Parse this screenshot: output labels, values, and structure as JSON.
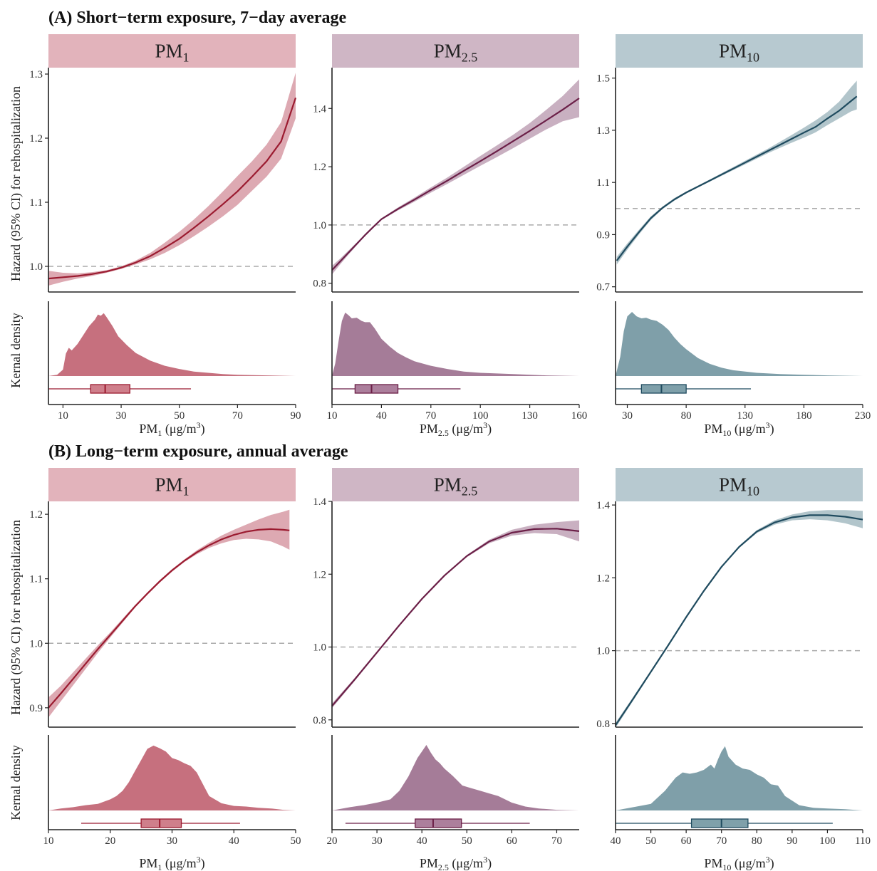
{
  "sections": [
    {
      "title": "(A) Short−term exposure, 7−day average"
    },
    {
      "title": "(B) Long−term exposure, annual average"
    }
  ],
  "y_label_top": "Hazard (95% CI) for rehospitalization",
  "y_label_bottom": "Kernal density",
  "pollutants": [
    {
      "key": "PM1",
      "base": "PM",
      "sub": "1",
      "color": "#9b1b30",
      "fill": "#c6707e",
      "strip": "#e2b3bb",
      "box_fill": "#cf7f8b"
    },
    {
      "key": "PM2.5",
      "base": "PM",
      "sub": "2.5",
      "color": "#6b1f47",
      "fill": "#a57c98",
      "strip": "#cfb6c5",
      "box_fill": "#ac7f9c"
    },
    {
      "key": "PM10",
      "base": "PM",
      "sub": "10",
      "color": "#1f4b5f",
      "fill": "#7f9fa9",
      "strip": "#b7c9d0",
      "box_fill": "#7fa0aa"
    }
  ],
  "unit_text": " (μg/m",
  "unit_sup": "3",
  "unit_close": ")",
  "chart_data": [
    {
      "type": "line",
      "section": "A",
      "pollutant": "PM1",
      "xlim": [
        5,
        90
      ],
      "ylim": [
        0.96,
        1.31
      ],
      "xticks": [
        10,
        30,
        50,
        70,
        90
      ],
      "yticks": [
        1.0,
        1.1,
        1.2,
        1.3
      ],
      "ytick_labels": [
        "1.0",
        "1.1",
        "1.2",
        "1.3"
      ],
      "x": [
        5,
        10,
        15,
        20,
        25,
        30,
        35,
        40,
        45,
        50,
        55,
        60,
        65,
        70,
        75,
        80,
        85,
        90
      ],
      "y": [
        0.981,
        0.983,
        0.985,
        0.988,
        0.992,
        0.998,
        1.006,
        1.016,
        1.029,
        1.043,
        1.06,
        1.078,
        1.097,
        1.117,
        1.14,
        1.164,
        1.195,
        1.263
      ],
      "lower": [
        0.97,
        0.976,
        0.981,
        0.985,
        0.99,
        0.996,
        1.003,
        1.011,
        1.021,
        1.033,
        1.047,
        1.062,
        1.078,
        1.096,
        1.118,
        1.14,
        1.168,
        1.231
      ],
      "upper": [
        0.993,
        0.99,
        0.989,
        0.991,
        0.994,
        1.0,
        1.009,
        1.021,
        1.037,
        1.054,
        1.073,
        1.094,
        1.117,
        1.141,
        1.164,
        1.19,
        1.225,
        1.302
      ],
      "density_x": [
        5,
        8,
        10,
        11,
        12,
        13,
        15,
        17,
        19,
        21,
        22,
        23,
        24,
        25,
        27,
        29,
        32,
        35,
        40,
        45,
        50,
        55,
        60,
        65,
        70,
        80,
        90
      ],
      "density": [
        0,
        0.02,
        0.1,
        0.35,
        0.44,
        0.4,
        0.5,
        0.64,
        0.78,
        0.88,
        0.96,
        0.94,
        0.98,
        0.92,
        0.78,
        0.62,
        0.48,
        0.36,
        0.24,
        0.16,
        0.11,
        0.07,
        0.05,
        0.03,
        0.02,
        0.01,
        0
      ],
      "box": {
        "whisker_low": 5,
        "q1": 19.5,
        "median": 24.5,
        "q3": 33,
        "whisker_high": 54
      },
      "xlabel": "PM1 (μg/m3)"
    },
    {
      "type": "line",
      "section": "A",
      "pollutant": "PM2.5",
      "xlim": [
        10,
        160
      ],
      "ylim": [
        0.77,
        1.54
      ],
      "xticks": [
        10,
        40,
        70,
        100,
        130,
        160
      ],
      "yticks": [
        0.8,
        1.0,
        1.2,
        1.4
      ],
      "ytick_labels": [
        "0.8",
        "1.0",
        "1.2",
        "1.4"
      ],
      "x": [
        10,
        15,
        20,
        25,
        30,
        35,
        40,
        50,
        60,
        70,
        80,
        90,
        100,
        110,
        120,
        130,
        140,
        150,
        160
      ],
      "y": [
        0.845,
        0.875,
        0.905,
        0.935,
        0.965,
        0.993,
        1.02,
        1.055,
        1.087,
        1.12,
        1.152,
        1.186,
        1.219,
        1.253,
        1.288,
        1.323,
        1.359,
        1.396,
        1.435
      ],
      "lower": [
        0.83,
        0.865,
        0.898,
        0.93,
        0.962,
        0.991,
        1.017,
        1.05,
        1.08,
        1.111,
        1.141,
        1.172,
        1.203,
        1.233,
        1.264,
        1.296,
        1.328,
        1.356,
        1.37
      ],
      "upper": [
        0.86,
        0.885,
        0.912,
        0.94,
        0.968,
        0.995,
        1.023,
        1.06,
        1.094,
        1.129,
        1.163,
        1.2,
        1.237,
        1.273,
        1.31,
        1.35,
        1.395,
        1.443,
        1.5
      ],
      "density_x": [
        10,
        12,
        14,
        16,
        18,
        20,
        22,
        25,
        28,
        30,
        33,
        36,
        40,
        45,
        50,
        55,
        60,
        70,
        80,
        90,
        100,
        120,
        140,
        160
      ],
      "density": [
        0,
        0.2,
        0.55,
        0.86,
        0.99,
        0.95,
        0.9,
        0.91,
        0.86,
        0.84,
        0.84,
        0.74,
        0.58,
        0.46,
        0.36,
        0.29,
        0.23,
        0.16,
        0.11,
        0.07,
        0.05,
        0.03,
        0.01,
        0
      ],
      "box": {
        "whisker_low": 10,
        "q1": 24,
        "median": 34,
        "q3": 50,
        "whisker_high": 88
      },
      "xlabel": "PM2.5 (μg/m3)"
    },
    {
      "type": "line",
      "section": "A",
      "pollutant": "PM10",
      "xlim": [
        20,
        230
      ],
      "ylim": [
        0.68,
        1.54
      ],
      "xticks": [
        30,
        80,
        130,
        180,
        230
      ],
      "yticks": [
        0.7,
        0.9,
        1.1,
        1.3,
        1.5
      ],
      "ytick_labels": [
        "0.7",
        "0.9",
        "1.1",
        "1.3",
        "1.5"
      ],
      "x": [
        21,
        30,
        40,
        50,
        60,
        70,
        80,
        90,
        100,
        110,
        120,
        130,
        140,
        150,
        160,
        170,
        180,
        190,
        200,
        210,
        220,
        225
      ],
      "y": [
        0.8,
        0.854,
        0.91,
        0.963,
        1.003,
        1.035,
        1.061,
        1.084,
        1.107,
        1.13,
        1.153,
        1.176,
        1.199,
        1.222,
        1.245,
        1.268,
        1.291,
        1.313,
        1.345,
        1.375,
        1.412,
        1.43
      ],
      "lower": [
        0.785,
        0.842,
        0.901,
        0.956,
        0.998,
        1.03,
        1.057,
        1.081,
        1.103,
        1.125,
        1.147,
        1.169,
        1.191,
        1.213,
        1.233,
        1.253,
        1.272,
        1.292,
        1.32,
        1.346,
        1.372,
        1.38
      ],
      "upper": [
        0.815,
        0.866,
        0.919,
        0.97,
        1.008,
        1.04,
        1.065,
        1.088,
        1.111,
        1.135,
        1.159,
        1.183,
        1.207,
        1.231,
        1.257,
        1.283,
        1.31,
        1.338,
        1.37,
        1.41,
        1.465,
        1.49
      ],
      "density_x": [
        20,
        24,
        27,
        30,
        34,
        38,
        42,
        46,
        50,
        55,
        60,
        65,
        70,
        75,
        80,
        90,
        100,
        110,
        120,
        140,
        160,
        180,
        200,
        230
      ],
      "density": [
        0,
        0.3,
        0.7,
        0.93,
        1.0,
        0.93,
        0.9,
        0.91,
        0.88,
        0.86,
        0.8,
        0.72,
        0.6,
        0.5,
        0.42,
        0.28,
        0.19,
        0.13,
        0.09,
        0.05,
        0.03,
        0.02,
        0.01,
        0
      ],
      "box": {
        "whisker_low": 20,
        "q1": 42,
        "median": 59,
        "q3": 80,
        "whisker_high": 135
      },
      "xlabel": "PM10 (μg/m3)"
    },
    {
      "type": "line",
      "section": "B",
      "pollutant": "PM1",
      "xlim": [
        10,
        50
      ],
      "ylim": [
        0.87,
        1.22
      ],
      "xticks": [
        10,
        20,
        30,
        40,
        50
      ],
      "yticks": [
        0.9,
        1.0,
        1.1,
        1.2
      ],
      "ytick_labels": [
        "0.9",
        "1.0",
        "1.1",
        "1.2"
      ],
      "x": [
        10,
        12,
        14,
        16,
        18,
        20,
        22,
        24,
        26,
        28,
        30,
        32,
        34,
        36,
        38,
        40,
        42,
        44,
        46,
        48,
        49
      ],
      "y": [
        0.9,
        0.922,
        0.945,
        0.968,
        0.991,
        1.013,
        1.035,
        1.057,
        1.077,
        1.096,
        1.113,
        1.128,
        1.141,
        1.152,
        1.161,
        1.168,
        1.173,
        1.176,
        1.177,
        1.176,
        1.175
      ],
      "lower": [
        0.885,
        0.91,
        0.935,
        0.96,
        0.985,
        1.009,
        1.032,
        1.055,
        1.075,
        1.094,
        1.111,
        1.126,
        1.138,
        1.148,
        1.155,
        1.16,
        1.162,
        1.161,
        1.158,
        1.15,
        1.145
      ],
      "upper": [
        0.916,
        0.934,
        0.955,
        0.976,
        0.997,
        1.017,
        1.038,
        1.059,
        1.079,
        1.098,
        1.115,
        1.13,
        1.144,
        1.156,
        1.167,
        1.176,
        1.184,
        1.192,
        1.199,
        1.204,
        1.207
      ],
      "density_x": [
        10,
        12,
        14,
        16,
        18,
        20,
        21,
        22,
        23,
        24,
        25,
        26,
        27,
        28,
        29,
        30,
        31,
        32,
        33,
        34,
        35,
        36,
        38,
        40,
        42,
        44,
        46,
        48,
        50
      ],
      "density": [
        0,
        0.03,
        0.05,
        0.08,
        0.1,
        0.17,
        0.22,
        0.3,
        0.43,
        0.6,
        0.77,
        0.94,
        0.99,
        0.95,
        0.9,
        0.8,
        0.77,
        0.72,
        0.68,
        0.58,
        0.4,
        0.22,
        0.11,
        0.07,
        0.06,
        0.04,
        0.03,
        0.01,
        0
      ],
      "box": {
        "whisker_low": 15.3,
        "q1": 25,
        "median": 28,
        "q3": 31.5,
        "whisker_high": 41
      },
      "xlabel": "PM1 (μg/m3)"
    },
    {
      "type": "line",
      "section": "B",
      "pollutant": "PM2.5",
      "xlim": [
        20,
        75
      ],
      "ylim": [
        0.78,
        1.4
      ],
      "xticks": [
        20,
        30,
        40,
        50,
        60,
        70
      ],
      "yticks": [
        0.8,
        1.0,
        1.2,
        1.4
      ],
      "ytick_labels": [
        "0.8",
        "1.0",
        "1.2",
        "1.4"
      ],
      "x": [
        20,
        25,
        30,
        35,
        40,
        45,
        50,
        55,
        60,
        65,
        70,
        75
      ],
      "y": [
        0.838,
        0.91,
        0.985,
        1.06,
        1.132,
        1.196,
        1.25,
        1.29,
        1.314,
        1.324,
        1.325,
        1.318
      ],
      "lower": [
        0.832,
        0.906,
        0.982,
        1.058,
        1.13,
        1.194,
        1.247,
        1.285,
        1.306,
        1.313,
        1.31,
        1.29
      ],
      "upper": [
        0.845,
        0.914,
        0.988,
        1.062,
        1.134,
        1.198,
        1.253,
        1.295,
        1.322,
        1.336,
        1.343,
        1.348
      ],
      "density_x": [
        20,
        24,
        27,
        30,
        33,
        35,
        37,
        38,
        39,
        40,
        41,
        42,
        43,
        44,
        45,
        47,
        49,
        51,
        53,
        55,
        57,
        60,
        63,
        66,
        70,
        75
      ],
      "density": [
        0,
        0.05,
        0.08,
        0.12,
        0.17,
        0.3,
        0.52,
        0.66,
        0.8,
        0.9,
        1.0,
        0.88,
        0.78,
        0.72,
        0.64,
        0.52,
        0.38,
        0.34,
        0.3,
        0.26,
        0.22,
        0.12,
        0.06,
        0.03,
        0.01,
        0
      ],
      "box": {
        "whisker_low": 23,
        "q1": 38.5,
        "median": 42.5,
        "q3": 48.8,
        "whisker_high": 64
      },
      "xlabel": "PM2.5 (μg/m3)"
    },
    {
      "type": "line",
      "section": "B",
      "pollutant": "PM10",
      "xlim": [
        40,
        110
      ],
      "ylim": [
        0.79,
        1.41
      ],
      "xticks": [
        40,
        50,
        60,
        70,
        80,
        90,
        100,
        110
      ],
      "yticks": [
        0.8,
        1.0,
        1.2,
        1.4
      ],
      "ytick_labels": [
        "0.8",
        "1.0",
        "1.2",
        "1.4"
      ],
      "x": [
        40,
        45,
        50,
        55,
        60,
        65,
        70,
        75,
        80,
        85,
        90,
        95,
        100,
        105,
        110
      ],
      "y": [
        0.795,
        0.868,
        0.942,
        1.016,
        1.092,
        1.164,
        1.23,
        1.285,
        1.327,
        1.352,
        1.366,
        1.372,
        1.372,
        1.368,
        1.36
      ],
      "lower": [
        0.788,
        0.863,
        0.938,
        1.013,
        1.089,
        1.162,
        1.228,
        1.282,
        1.323,
        1.346,
        1.358,
        1.361,
        1.358,
        1.35,
        1.336
      ],
      "upper": [
        0.802,
        0.873,
        0.946,
        1.019,
        1.095,
        1.166,
        1.232,
        1.288,
        1.331,
        1.358,
        1.374,
        1.383,
        1.386,
        1.386,
        1.384
      ],
      "density_x": [
        40,
        45,
        50,
        54,
        57,
        59,
        61,
        63,
        65,
        67,
        68,
        69,
        70,
        71,
        72,
        74,
        76,
        78,
        80,
        82,
        84,
        86,
        88,
        92,
        96,
        100,
        105,
        110
      ],
      "density": [
        0,
        0.05,
        0.1,
        0.3,
        0.5,
        0.58,
        0.56,
        0.58,
        0.62,
        0.7,
        0.64,
        0.78,
        0.9,
        0.98,
        0.82,
        0.7,
        0.64,
        0.62,
        0.55,
        0.5,
        0.4,
        0.38,
        0.22,
        0.08,
        0.04,
        0.03,
        0.02,
        0
      ],
      "box": {
        "whisker_low": 40,
        "q1": 61.5,
        "median": 70,
        "q3": 77.5,
        "whisker_high": 101.5
      },
      "xlabel": "PM10 (μg/m3)"
    }
  ]
}
